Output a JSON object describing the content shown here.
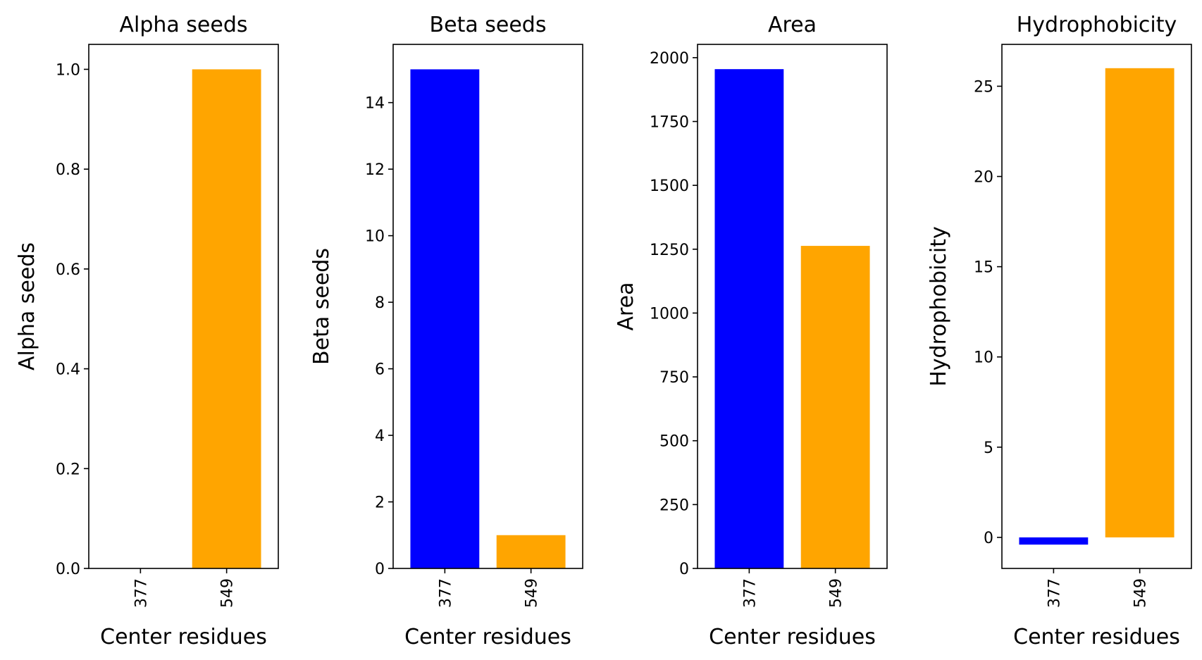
{
  "chart_data": [
    {
      "type": "bar",
      "title": "Alpha seeds",
      "xlabel": "Center residues",
      "ylabel": "Alpha seeds",
      "categories": [
        "377",
        "549"
      ],
      "values": [
        0,
        1.0
      ],
      "colors": [
        "#0000ff",
        "#ffa500"
      ],
      "ylim": [
        0,
        1.05
      ],
      "yticks": [
        0.0,
        0.2,
        0.4,
        0.6,
        0.8,
        1.0
      ],
      "ytick_labels": [
        "0.0",
        "0.2",
        "0.4",
        "0.6",
        "0.8",
        "1.0"
      ],
      "grid": false
    },
    {
      "type": "bar",
      "title": "Beta seeds",
      "xlabel": "Center residues",
      "ylabel": "Beta seeds",
      "categories": [
        "377",
        "549"
      ],
      "values": [
        15,
        1
      ],
      "colors": [
        "#0000ff",
        "#ffa500"
      ],
      "ylim": [
        0,
        15.75
      ],
      "yticks": [
        0,
        2,
        4,
        6,
        8,
        10,
        12,
        14
      ],
      "ytick_labels": [
        "0",
        "2",
        "4",
        "6",
        "8",
        "10",
        "12",
        "14"
      ],
      "grid": false
    },
    {
      "type": "bar",
      "title": "Area",
      "xlabel": "Center residues",
      "ylabel": "Area",
      "categories": [
        "377",
        "549"
      ],
      "values": [
        1955,
        1263
      ],
      "colors": [
        "#0000ff",
        "#ffa500"
      ],
      "ylim": [
        0,
        2052
      ],
      "yticks": [
        0,
        250,
        500,
        750,
        1000,
        1250,
        1500,
        1750,
        2000
      ],
      "ytick_labels": [
        "0",
        "250",
        "500",
        "750",
        "1000",
        "1250",
        "1500",
        "1750",
        "2000"
      ],
      "grid": false
    },
    {
      "type": "bar",
      "title": "Hydrophobicity",
      "xlabel": "Center residues",
      "ylabel": "Hydrophobicity",
      "categories": [
        "377",
        "549"
      ],
      "values": [
        -0.4,
        26.0
      ],
      "colors": [
        "#0000ff",
        "#ffa500"
      ],
      "ylim": [
        -1.72,
        27.32
      ],
      "yticks": [
        0,
        5,
        10,
        15,
        20,
        25
      ],
      "ytick_labels": [
        "0",
        "5",
        "10",
        "15",
        "20",
        "25"
      ],
      "grid": false
    }
  ]
}
